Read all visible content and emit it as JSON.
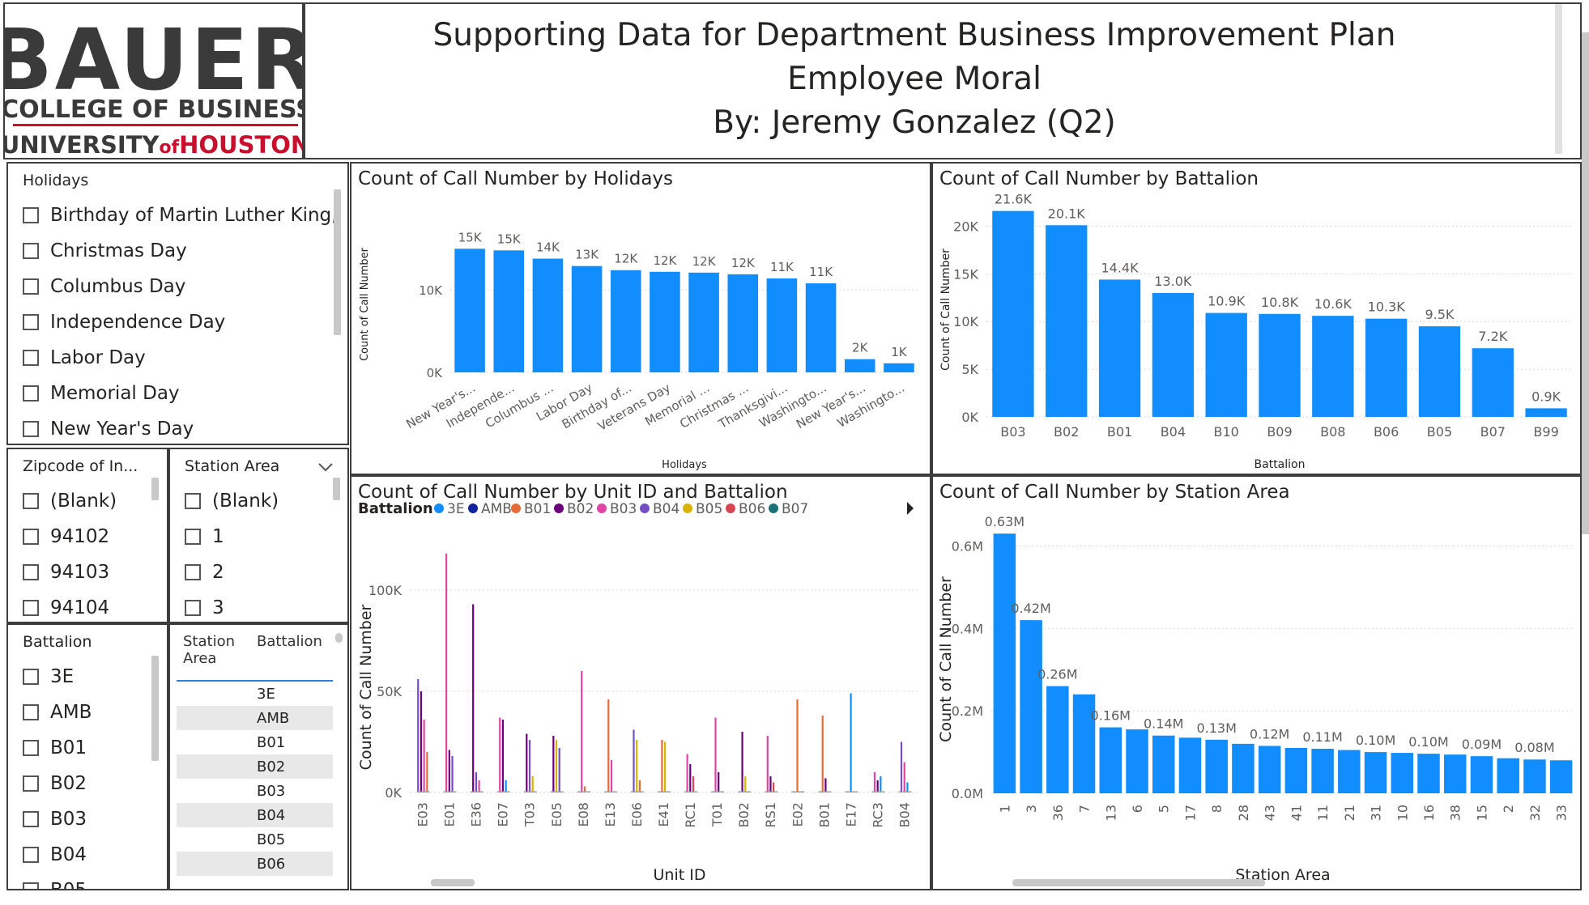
{
  "header": {
    "logo": {
      "line1": "BAUER",
      "line2": "COLLEGE OF BUSINESS",
      "line3a": "UNIVERSITY",
      "line3b": "of",
      "line3c": "HOUSTON"
    },
    "title_line1": "Supporting Data for Department Business Improvement Plan",
    "title_line2": "Employee Moral",
    "title_line3": "By: Jeremy Gonzalez (Q2)"
  },
  "slicers": {
    "holidays": {
      "title": "Holidays",
      "items": [
        "Birthday of Martin Luther King, ...",
        "Christmas Day",
        "Columbus Day",
        "Independence Day",
        "Labor Day",
        "Memorial Day",
        "New Year's Day"
      ]
    },
    "zipcode": {
      "title": "Zipcode of In...",
      "items": [
        "(Blank)",
        "94102",
        "94103",
        "94104"
      ]
    },
    "station_area": {
      "title": "Station Area",
      "items": [
        "(Blank)",
        "1",
        "2",
        "3"
      ]
    },
    "battalion": {
      "title": "Battalion",
      "items": [
        "3E",
        "AMB",
        "B01",
        "B02",
        "B03",
        "B04",
        "B05"
      ]
    }
  },
  "table": {
    "headers": [
      "Station Area",
      "Battalion"
    ],
    "rows": [
      [
        "",
        "3E"
      ],
      [
        "",
        "AMB"
      ],
      [
        "",
        "B01"
      ],
      [
        "",
        "B02"
      ],
      [
        "",
        "B03"
      ],
      [
        "",
        "B04"
      ],
      [
        "",
        "B05"
      ],
      [
        "",
        "B06"
      ]
    ]
  },
  "colors": {
    "bar": "#118dff",
    "border": "#3d3d3d",
    "logo_red": "#c8102e",
    "logo_gray": "#3a3a3a"
  },
  "chart_data": [
    {
      "type": "bar",
      "title": "Count of Call Number by Holidays",
      "xlabel": "Holidays",
      "ylabel": "Count of Call Number",
      "categories": [
        "New Year's...",
        "Independe...",
        "Columbus ...",
        "Labor Day",
        "Birthday of...",
        "Veterans Day",
        "Memorial ...",
        "Christmas ...",
        "Thanksgivi...",
        "Washingto...",
        "New Year's...",
        "Washingto..."
      ],
      "values": [
        15000,
        14800,
        13800,
        12900,
        12400,
        12200,
        12100,
        11900,
        11400,
        10800,
        1600,
        1100
      ],
      "data_labels": [
        "15K",
        "15K",
        "14K",
        "13K",
        "12K",
        "12K",
        "12K",
        "12K",
        "11K",
        "11K",
        "2K",
        "1K"
      ],
      "yticks": [
        {
          "v": 0,
          "label": "0K"
        },
        {
          "v": 10000,
          "label": "10K"
        }
      ],
      "ylim": [
        0,
        16500
      ],
      "grid": true
    },
    {
      "type": "bar",
      "title": "Count of Call Number by Battalion",
      "xlabel": "Battalion",
      "ylabel": "Count of Call Number",
      "categories": [
        "B03",
        "B02",
        "B01",
        "B04",
        "B10",
        "B09",
        "B08",
        "B06",
        "B05",
        "B07",
        "B99"
      ],
      "values": [
        21600,
        20100,
        14400,
        13000,
        10900,
        10800,
        10600,
        10300,
        9500,
        7200,
        900
      ],
      "data_labels": [
        "21.6K",
        "20.1K",
        "14.4K",
        "13.0K",
        "10.9K",
        "10.8K",
        "10.6K",
        "10.3K",
        "9.5K",
        "7.2K",
        "0.9K"
      ],
      "yticks": [
        {
          "v": 0,
          "label": "0K"
        },
        {
          "v": 5000,
          "label": "5K"
        },
        {
          "v": 10000,
          "label": "10K"
        },
        {
          "v": 15000,
          "label": "15K"
        },
        {
          "v": 20000,
          "label": "20K"
        }
      ],
      "ylim": [
        0,
        22500
      ],
      "grid": true
    },
    {
      "type": "bar",
      "title": "Count of Call Number by Unit ID and Battalion",
      "xlabel": "Unit ID",
      "ylabel": "Count of Call Number",
      "legend_title": "Battalion",
      "legend": [
        {
          "name": "3E",
          "color": "#118dff"
        },
        {
          "name": "AMB",
          "color": "#12239e"
        },
        {
          "name": "B01",
          "color": "#e66c37"
        },
        {
          "name": "B02",
          "color": "#6b007b"
        },
        {
          "name": "B03",
          "color": "#e044a7"
        },
        {
          "name": "B04",
          "color": "#744ec2"
        },
        {
          "name": "B05",
          "color": "#d9b300"
        },
        {
          "name": "B06",
          "color": "#d64550"
        },
        {
          "name": "B07",
          "color": "#197278"
        }
      ],
      "categories": [
        "E03",
        "E01",
        "E36",
        "E07",
        "T03",
        "E05",
        "E08",
        "E13",
        "E06",
        "E41",
        "RC1",
        "T01",
        "B02",
        "RS1",
        "E02",
        "B01",
        "E17",
        "RC3",
        "B04"
      ],
      "bars": [
        [
          [
            "B04",
            56000
          ],
          [
            "B02",
            50000
          ],
          [
            "B03",
            36000
          ],
          [
            "B01",
            20000
          ]
        ],
        [
          [
            "B03",
            118000
          ],
          [
            "B02",
            21000
          ],
          [
            "B04",
            18000
          ]
        ],
        [
          [
            "B02",
            93000
          ],
          [
            "B04",
            10000
          ],
          [
            "B03",
            6000
          ]
        ],
        [
          [
            "B03",
            37000
          ],
          [
            "B02",
            36000
          ],
          [
            "3E",
            6000
          ]
        ],
        [
          [
            "B02",
            29000
          ],
          [
            "B04",
            26000
          ],
          [
            "B05",
            8000
          ]
        ],
        [
          [
            "B02",
            28000
          ],
          [
            "B05",
            26000
          ],
          [
            "B04",
            22000
          ]
        ],
        [
          [
            "B03",
            60000
          ],
          [
            "B01",
            3000
          ]
        ],
        [
          [
            "B01",
            46000
          ],
          [
            "B03",
            16000
          ]
        ],
        [
          [
            "B04",
            31000
          ],
          [
            "B05",
            26000
          ],
          [
            "B01",
            6000
          ]
        ],
        [
          [
            "B01",
            26000
          ],
          [
            "B05",
            25000
          ]
        ],
        [
          [
            "B03",
            19000
          ],
          [
            "B02",
            14000
          ],
          [
            "B06",
            8000
          ]
        ],
        [
          [
            "B03",
            37000
          ],
          [
            "B02",
            10000
          ]
        ],
        [
          [
            "B02",
            30000
          ],
          [
            "B05",
            8000
          ]
        ],
        [
          [
            "B03",
            28000
          ],
          [
            "B02",
            8000
          ],
          [
            "B06",
            5000
          ]
        ],
        [
          [
            "B01",
            46000
          ]
        ],
        [
          [
            "B01",
            38000
          ],
          [
            "B02",
            7000
          ]
        ],
        [
          [
            "3E",
            49000
          ]
        ],
        [
          [
            "B03",
            10000
          ],
          [
            "B02",
            6000
          ],
          [
            "3E",
            8000
          ]
        ],
        [
          [
            "B04",
            25000
          ],
          [
            "B03",
            15000
          ],
          [
            "3E",
            5000
          ]
        ]
      ],
      "yticks": [
        {
          "v": 0,
          "label": "0K"
        },
        {
          "v": 50000,
          "label": "50K"
        },
        {
          "v": 100000,
          "label": "100K"
        }
      ],
      "ylim": [
        0,
        120000
      ],
      "grid": true
    },
    {
      "type": "bar",
      "title": "Count of Call Number by Station Area",
      "xlabel": "Station Area",
      "ylabel": "Count of Call Number",
      "categories": [
        "1",
        "3",
        "36",
        "7",
        "13",
        "6",
        "5",
        "17",
        "8",
        "28",
        "43",
        "41",
        "11",
        "21",
        "31",
        "10",
        "16",
        "38",
        "15",
        "2",
        "32",
        "33"
      ],
      "values": [
        630000,
        420000,
        260000,
        240000,
        160000,
        155000,
        140000,
        135000,
        130000,
        120000,
        115000,
        110000,
        108000,
        105000,
        100000,
        98000,
        96000,
        94000,
        90000,
        85000,
        82000,
        80000
      ],
      "data_labels": [
        "0.63M",
        "0.42M",
        "0.26M",
        "",
        "0.16M",
        "",
        "0.14M",
        "",
        "0.13M",
        "",
        "0.12M",
        "",
        "0.11M",
        "",
        "0.10M",
        "",
        "0.10M",
        "",
        "0.09M",
        "",
        "0.08M",
        ""
      ],
      "yticks": [
        {
          "v": 0,
          "label": "0.0M"
        },
        {
          "v": 200000,
          "label": "0.2M"
        },
        {
          "v": 400000,
          "label": "0.4M"
        },
        {
          "v": 600000,
          "label": "0.6M"
        }
      ],
      "ylim": [
        0,
        650000
      ],
      "grid": true
    }
  ]
}
